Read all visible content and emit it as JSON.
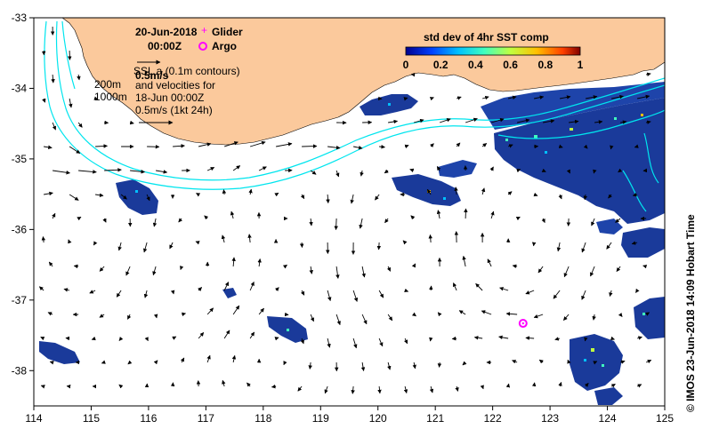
{
  "header": {
    "date": "20-Jun-2018",
    "time": "00:00Z"
  },
  "legend": {
    "glider_label": "Glider",
    "argo_label": "Argo",
    "colorbar_title": "std dev of 4hr SST comp",
    "colorbar_ticks": [
      "0",
      "0.2",
      "0.4",
      "0.6",
      "0.8",
      "1"
    ],
    "colors": {
      "glider": "#ff00ff",
      "argo": "#ff00ff",
      "land": "#fbc99c",
      "depth_contours": "#00e5ee",
      "colormap": [
        "#00008f",
        "#0040ff",
        "#00c0ff",
        "#40ffbf",
        "#c0ff40",
        "#ffc000",
        "#ff4000",
        "#800000"
      ]
    }
  },
  "annotations": {
    "scale_speed_label": "0.5m/s",
    "sla_line": "SSL a (0.1m contours)",
    "velocity_line_1": "and velocities for",
    "velocity_line_2": "18-Jun 00:00Z",
    "velocity_line_3": "0.5m/s (1kt 24h)",
    "depth_200": "200m",
    "depth_1000": "1000m"
  },
  "axes": {
    "x_ticks": [
      "114",
      "115",
      "116",
      "117",
      "118",
      "119",
      "120",
      "121",
      "122",
      "123",
      "124",
      "125"
    ],
    "y_ticks": [
      "-33",
      "-34",
      "-35",
      "-36",
      "-37",
      "-38"
    ]
  },
  "side_caption": "© IMOS 23-Jun-2018 14:09 Hobart Time",
  "markers": {
    "argo": {
      "lon": 122.53,
      "lat": -37.33
    }
  },
  "extent": {
    "lon": [
      114,
      125
    ],
    "lat": [
      -38.5,
      -33
    ]
  }
}
